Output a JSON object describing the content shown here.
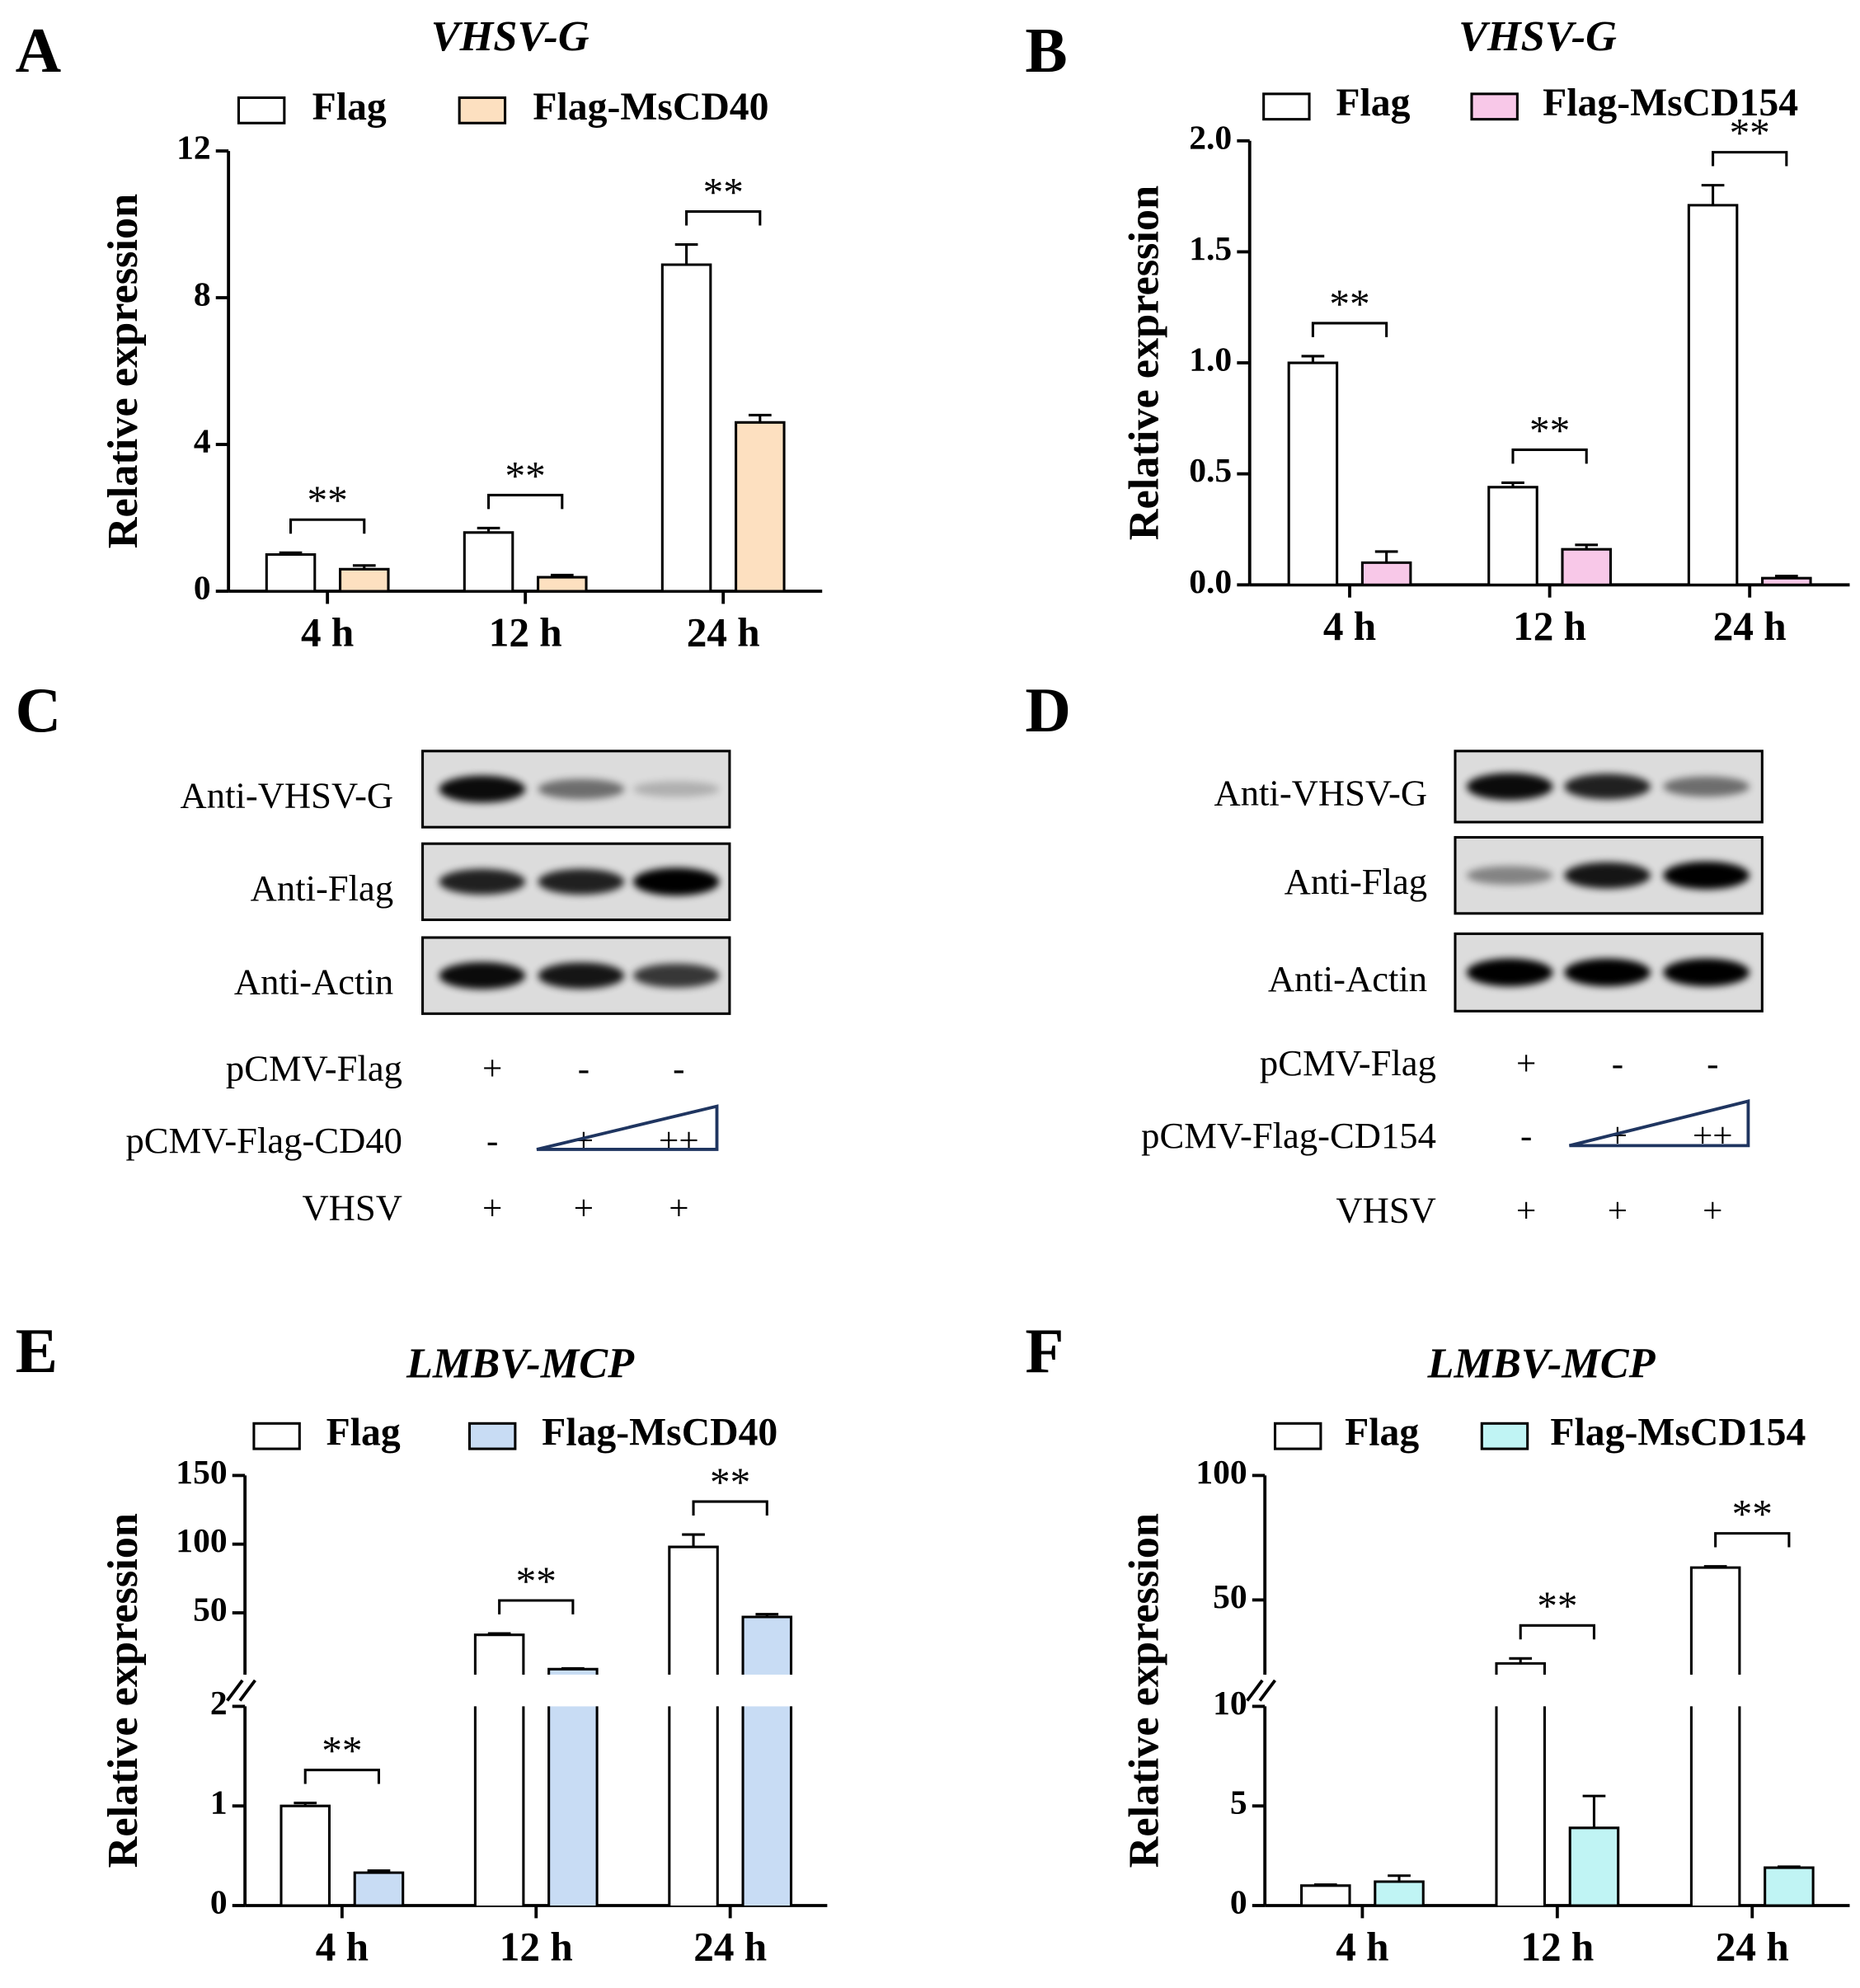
{
  "chart_data": [
    {
      "type": "bar",
      "panel": "A",
      "title": "VHSV-G",
      "ylabel": "Relative expression",
      "categories": [
        "4 h",
        "12 h",
        "24 h"
      ],
      "series": [
        {
          "name": "Flag",
          "color": "#ffffff",
          "values": [
            1.0,
            1.6,
            8.9
          ],
          "errors": [
            0.05,
            0.12,
            0.55
          ]
        },
        {
          "name": "Flag-MsCD40",
          "color": "#fde0c0",
          "values": [
            0.6,
            0.38,
            4.6
          ],
          "errors": [
            0.1,
            0.06,
            0.2
          ]
        }
      ],
      "significance": [
        "**",
        "**",
        "**"
      ],
      "ylim": [
        0,
        12
      ],
      "yticks": [
        0,
        4,
        8,
        12
      ]
    },
    {
      "type": "bar",
      "panel": "B",
      "title": "VHSV-G",
      "ylabel": "Relative expression",
      "categories": [
        "4 h",
        "12 h",
        "24 h"
      ],
      "series": [
        {
          "name": "Flag",
          "color": "#ffffff",
          "values": [
            1.0,
            0.44,
            1.71
          ],
          "errors": [
            0.03,
            0.02,
            0.09
          ]
        },
        {
          "name": "Flag-MsCD154",
          "color": "#f8c8e8",
          "values": [
            0.1,
            0.16,
            0.03
          ],
          "errors": [
            0.05,
            0.02,
            0.01
          ]
        }
      ],
      "significance": [
        "**",
        "**",
        "**"
      ],
      "ylim": [
        0,
        2
      ],
      "yticks": [
        {
          "value": 0,
          "label": "0.0"
        },
        0.5,
        {
          "value": 1,
          "label": "1.0"
        },
        1.5,
        {
          "value": 2,
          "label": "2.0"
        }
      ]
    },
    {
      "type": "bar",
      "panel": "E",
      "title": "LMBV-MCP",
      "ylabel": "Relative expression",
      "categories": [
        "4 h",
        "12 h",
        "24 h"
      ],
      "series": [
        {
          "name": "Flag",
          "color": "#ffffff",
          "values": [
            1.0,
            34,
            98
          ],
          "errors": [
            0.03,
            1,
            9
          ]
        },
        {
          "name": "Flag-MsCD40",
          "color": "#c8dcf4",
          "values": [
            0.33,
            9,
            47
          ],
          "errors": [
            0.02,
            0.5,
            2
          ]
        }
      ],
      "significance": [
        "**",
        "**",
        "**"
      ],
      "y_segments": [
        {
          "ylim": [
            0,
            2
          ],
          "yticks": [
            0,
            1,
            2
          ]
        },
        {
          "ylim": [
            5,
            150
          ],
          "yticks": [
            50,
            100,
            150
          ]
        }
      ]
    },
    {
      "type": "bar",
      "panel": "F",
      "title": "LMBV-MCP",
      "ylabel": "Relative expression",
      "categories": [
        "4 h",
        "12 h",
        "24 h"
      ],
      "series": [
        {
          "name": "Flag",
          "color": "#ffffff",
          "values": [
            1.0,
            24.5,
            63
          ],
          "errors": [
            0.05,
            2,
            0.5
          ]
        },
        {
          "name": "Flag-MsCD154",
          "color": "#c0f4f4",
          "values": [
            1.2,
            3.9,
            1.9
          ],
          "errors": [
            0.3,
            1.6,
            0.05
          ]
        }
      ],
      "significance": [
        null,
        "**",
        "**"
      ],
      "y_segments": [
        {
          "ylim": [
            0,
            10
          ],
          "yticks": [
            0,
            5,
            10
          ]
        },
        {
          "ylim": [
            20,
            100
          ],
          "yticks": [
            50,
            100
          ]
        }
      ]
    }
  ],
  "blots": [
    {
      "panel": "C",
      "rows": [
        "Anti-VHSV-G",
        "Anti-Flag",
        "Anti-Actin"
      ],
      "conditions": [
        {
          "name": "pCMV-Flag",
          "marks": [
            "+",
            "-",
            "-"
          ]
        },
        {
          "name": "pCMV-Flag-CD40",
          "marks": [
            "-",
            "+",
            "++"
          ]
        },
        {
          "name": "VHSV",
          "marks": [
            "+",
            "+",
            "+"
          ]
        }
      ]
    },
    {
      "panel": "D",
      "rows": [
        "Anti-VHSV-G",
        "Anti-Flag",
        "Anti-Actin"
      ],
      "conditions": [
        {
          "name": "pCMV-Flag",
          "marks": [
            "+",
            "-",
            "-"
          ]
        },
        {
          "name": "pCMV-Flag-CD154",
          "marks": [
            "-",
            "+",
            "++"
          ]
        },
        {
          "name": "VHSV",
          "marks": [
            "+",
            "+",
            "+"
          ]
        }
      ]
    }
  ]
}
